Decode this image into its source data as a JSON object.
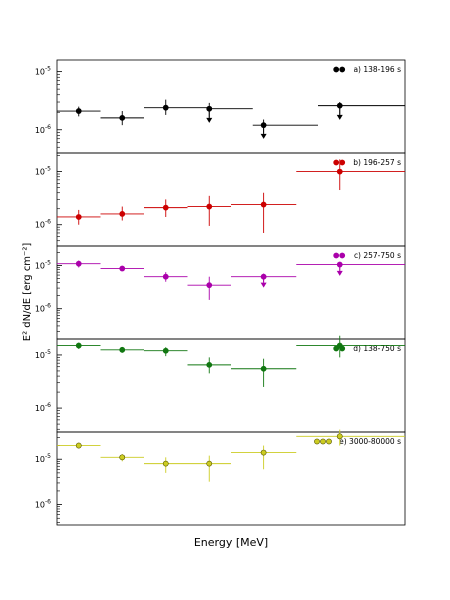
{
  "figure": {
    "ylabel": "E² dN/dE [erg cm⁻²]",
    "xlabel": "Energy [MeV]"
  },
  "chart_data": [
    {
      "type": "scatter",
      "title": "",
      "legend": "a) 138-196 s",
      "color": "#000000",
      "legend_markers": 2,
      "ytick_labels": [
        "10^-5",
        "10^-6"
      ],
      "yscale": "log",
      "ylim_log10": [
        -6.4,
        -4.8
      ],
      "points": [
        {
          "x": [
            0.0,
            1.0
          ],
          "xc": 0.5,
          "y": 2.1e-06,
          "ylo": 1.7e-06,
          "yhi": 2.5e-06,
          "upper_limit": false
        },
        {
          "x": [
            1.0,
            2.0
          ],
          "xc": 1.5,
          "y": 1.6e-06,
          "ylo": 1.2e-06,
          "yhi": 2.1e-06,
          "upper_limit": false
        },
        {
          "x": [
            2.0,
            3.5
          ],
          "xc": 2.5,
          "y": 2.4e-06,
          "ylo": 1.8e-06,
          "yhi": 3.3e-06,
          "upper_limit": false
        },
        {
          "x": [
            3.5,
            4.5
          ],
          "xc": 3.5,
          "y": 2.3e-06,
          "ylo": 1.6e-06,
          "yhi": 2.9e-06,
          "upper_limit": true
        },
        {
          "x": [
            4.5,
            6.0
          ],
          "xc": 4.75,
          "y": 1.2e-06,
          "ylo": 8.5e-07,
          "yhi": 1.5e-06,
          "upper_limit": true
        },
        {
          "x": [
            6.0,
            8.0
          ],
          "xc": 6.5,
          "y": 2.6e-06,
          "ylo": 1.8e-06,
          "yhi": 3e-06,
          "upper_limit": true
        }
      ]
    },
    {
      "type": "scatter",
      "title": "",
      "legend": "b) 196-257 s",
      "color": "#cc0000",
      "legend_markers": 2,
      "ytick_labels": [
        "10^-5",
        "10^-6"
      ],
      "yscale": "log",
      "ylim_log10": [
        -6.4,
        -4.65
      ],
      "points": [
        {
          "x": [
            0.0,
            1.0
          ],
          "xc": 0.5,
          "y": 1.4e-06,
          "ylo": 1e-06,
          "yhi": 1.9e-06,
          "upper_limit": false
        },
        {
          "x": [
            1.0,
            2.0
          ],
          "xc": 1.5,
          "y": 1.6e-06,
          "ylo": 1.2e-06,
          "yhi": 2.2e-06,
          "upper_limit": false
        },
        {
          "x": [
            2.0,
            3.0
          ],
          "xc": 2.5,
          "y": 2.1e-06,
          "ylo": 1.4e-06,
          "yhi": 3e-06,
          "upper_limit": false
        },
        {
          "x": [
            3.0,
            4.0
          ],
          "xc": 3.5,
          "y": 2.2e-06,
          "ylo": 9.5e-07,
          "yhi": 3.5e-06,
          "upper_limit": false
        },
        {
          "x": [
            4.0,
            5.5
          ],
          "xc": 4.75,
          "y": 2.4e-06,
          "ylo": 7e-07,
          "yhi": 4e-06,
          "upper_limit": false
        },
        {
          "x": [
            5.5,
            8.0
          ],
          "xc": 6.5,
          "y": 1e-05,
          "ylo": 4.5e-06,
          "yhi": 1.7e-05,
          "upper_limit": false
        }
      ]
    },
    {
      "type": "scatter",
      "title": "",
      "legend": "c) 257-750 s",
      "color": "#aa00aa",
      "legend_markers": 2,
      "ytick_labels": [
        "10^-5",
        "10^-6"
      ],
      "yscale": "log",
      "ylim_log10": [
        -6.7,
        -4.55
      ],
      "points": [
        {
          "x": [
            0.0,
            1.0
          ],
          "xc": 0.5,
          "y": 1.1e-05,
          "ylo": 9e-06,
          "yhi": 1.3e-05,
          "upper_limit": false
        },
        {
          "x": [
            1.0,
            2.0
          ],
          "xc": 1.5,
          "y": 8.5e-06,
          "ylo": 7.5e-06,
          "yhi": 9.5e-06,
          "upper_limit": false
        },
        {
          "x": [
            2.0,
            3.0
          ],
          "xc": 2.5,
          "y": 5.5e-06,
          "ylo": 4.2e-06,
          "yhi": 7e-06,
          "upper_limit": false
        },
        {
          "x": [
            3.0,
            4.0
          ],
          "xc": 3.5,
          "y": 3.5e-06,
          "ylo": 1.6e-06,
          "yhi": 5.5e-06,
          "upper_limit": false
        },
        {
          "x": [
            4.0,
            5.5
          ],
          "xc": 4.75,
          "y": 5.5e-06,
          "ylo": 4e-06,
          "yhi": 6.5e-06,
          "upper_limit": true
        },
        {
          "x": [
            5.5,
            8.0
          ],
          "xc": 6.5,
          "y": 1.05e-05,
          "ylo": 7.5e-06,
          "yhi": 1.2e-05,
          "upper_limit": true
        }
      ]
    },
    {
      "type": "scatter",
      "title": "",
      "legend": "d) 138-750 s",
      "color": "#117711",
      "legend_markers": 2,
      "ytick_labels": [
        "10^-5",
        "10^-6"
      ],
      "yscale": "log",
      "ylim_log10": [
        -6.45,
        -4.7
      ],
      "points": [
        {
          "x": [
            0.0,
            1.0
          ],
          "xc": 0.5,
          "y": 1.5e-05,
          "ylo": 1.3e-05,
          "yhi": 1.7e-05,
          "upper_limit": false
        },
        {
          "x": [
            1.0,
            2.0
          ],
          "xc": 1.5,
          "y": 1.25e-05,
          "ylo": 1.1e-05,
          "yhi": 1.4e-05,
          "upper_limit": false
        },
        {
          "x": [
            2.0,
            3.0
          ],
          "xc": 2.5,
          "y": 1.2e-05,
          "ylo": 9.5e-06,
          "yhi": 1.4e-05,
          "upper_limit": false
        },
        {
          "x": [
            3.0,
            4.0
          ],
          "xc": 3.5,
          "y": 6.5e-06,
          "ylo": 4.5e-06,
          "yhi": 9e-06,
          "upper_limit": false
        },
        {
          "x": [
            4.0,
            5.5
          ],
          "xc": 4.75,
          "y": 5.5e-06,
          "ylo": 2.5e-06,
          "yhi": 8.5e-06,
          "upper_limit": false
        },
        {
          "x": [
            5.5,
            8.0
          ],
          "xc": 6.5,
          "y": 1.5e-05,
          "ylo": 9e-06,
          "yhi": 2.3e-05,
          "upper_limit": false
        }
      ]
    },
    {
      "type": "scatter",
      "title": "",
      "legend": "e) 3000-80000 s",
      "color": "#cccc22",
      "legend_markers": 3,
      "ytick_labels": [
        "10^-5",
        "10^-6"
      ],
      "yscale": "log",
      "ylim_log10": [
        -6.45,
        -4.4
      ],
      "points": [
        {
          "x": [
            0.0,
            1.0
          ],
          "xc": 0.5,
          "y": 2e-05,
          "ylo": 1.8e-05,
          "yhi": 2.3e-05,
          "upper_limit": false
        },
        {
          "x": [
            1.0,
            2.0
          ],
          "xc": 1.5,
          "y": 1.1e-05,
          "ylo": 9e-06,
          "yhi": 1.3e-05,
          "upper_limit": false
        },
        {
          "x": [
            2.0,
            3.0
          ],
          "xc": 2.5,
          "y": 8e-06,
          "ylo": 5e-06,
          "yhi": 1.1e-05,
          "upper_limit": false
        },
        {
          "x": [
            3.0,
            4.0
          ],
          "xc": 3.5,
          "y": 8e-06,
          "ylo": 3.2e-06,
          "yhi": 1.2e-05,
          "upper_limit": false
        },
        {
          "x": [
            4.0,
            5.5
          ],
          "xc": 4.75,
          "y": 1.4e-05,
          "ylo": 6e-06,
          "yhi": 2e-05,
          "upper_limit": false
        },
        {
          "x": [
            5.5,
            8.0
          ],
          "xc": 6.5,
          "y": 3.2e-05,
          "ylo": 2e-05,
          "yhi": 4.5e-05,
          "upper_limit": false
        }
      ]
    }
  ]
}
